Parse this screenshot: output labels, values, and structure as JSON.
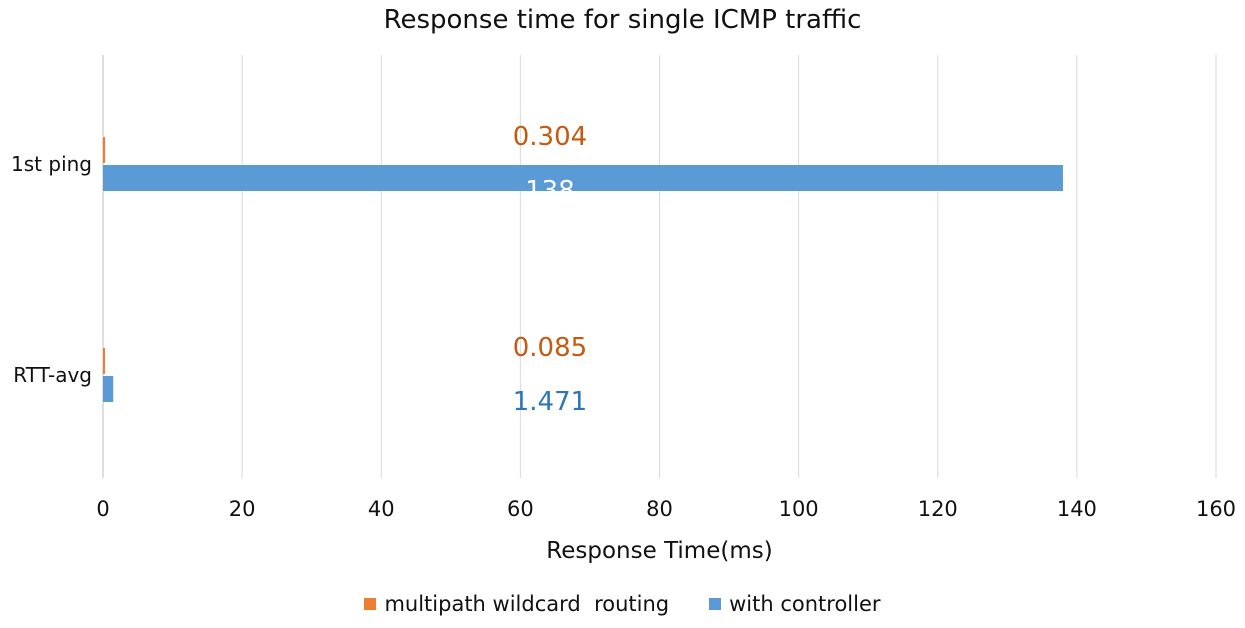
{
  "chart_data": {
    "type": "bar",
    "orientation": "horizontal",
    "title": "Response time for single ICMP traffic",
    "xlabel": "Response Time(ms)",
    "ylabel": "",
    "categories": [
      "1st ping",
      "RTT-avg"
    ],
    "series": [
      {
        "name": "multipath wildcard  routing",
        "color": "#ED7D31",
        "label_color": "#C55A11",
        "values": [
          0.304,
          0.085
        ],
        "labels": [
          "0.304",
          "0.085"
        ]
      },
      {
        "name": "with controller",
        "color": "#5B9BD5",
        "label_color": "#2E75B6",
        "values": [
          138,
          1.471
        ],
        "labels": [
          "138",
          "1.471"
        ]
      }
    ],
    "xlim": [
      0,
      160
    ],
    "xticks": [
      0,
      20,
      40,
      60,
      80,
      100,
      120,
      140,
      160
    ],
    "xtick_labels": [
      "0",
      "20",
      "40",
      "60",
      "80",
      "100",
      "120",
      "140",
      "160"
    ],
    "grid": true,
    "legend_position": "bottom"
  }
}
